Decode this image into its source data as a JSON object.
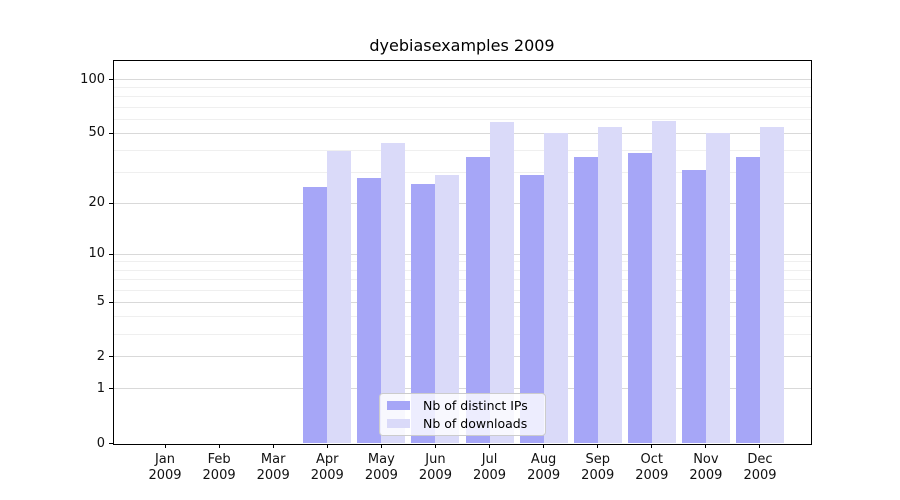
{
  "title": "dyebiasexamples 2009",
  "legend": {
    "items": [
      {
        "label": "Nb of distinct IPs",
        "color": "#a6a6f7"
      },
      {
        "label": "Nb of downloads",
        "color": "#dadaf9"
      }
    ],
    "position": "lower center"
  },
  "colors": {
    "distinct_ips_bar": "#a6a6f7",
    "downloads_bar": "#dadaf9",
    "major_gridline": "#d9d9d9",
    "minor_gridline": "#efefef",
    "axis_frame": "#000000"
  },
  "chart_data": {
    "type": "bar",
    "title": "dyebiasexamples 2009",
    "categories": [
      "Jan 2009",
      "Feb 2009",
      "Mar 2009",
      "Apr 2009",
      "May 2009",
      "Jun 2009",
      "Jul 2009",
      "Aug 2009",
      "Sep 2009",
      "Oct 2009",
      "Nov 2009",
      "Dec 2009"
    ],
    "series": [
      {
        "name": "Nb of distinct IPs",
        "color": "#a6a6f7",
        "values": [
          0,
          0,
          0,
          25,
          28,
          26,
          37,
          29,
          37,
          39,
          31,
          37
        ]
      },
      {
        "name": "Nb of downloads",
        "color": "#dadaf9",
        "values": [
          0,
          0,
          0,
          40,
          44,
          29,
          58,
          50,
          54,
          59,
          50,
          54
        ]
      }
    ],
    "xlabel": "",
    "ylabel": "",
    "yscale": "log1p",
    "yticks": [
      0,
      1,
      2,
      5,
      10,
      20,
      50,
      100
    ],
    "minor_yticks": [
      3,
      4,
      6,
      7,
      8,
      9,
      30,
      40,
      60,
      70,
      80,
      90
    ],
    "ylim": [
      0,
      128
    ],
    "grid": true,
    "legend_position": "lower center"
  }
}
